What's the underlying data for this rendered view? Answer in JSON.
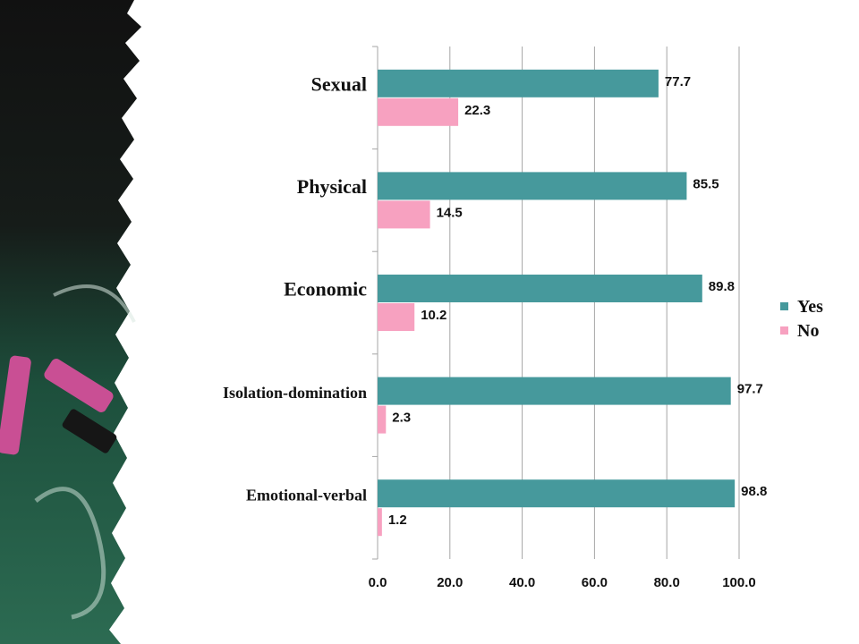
{
  "chart_data": {
    "type": "bar",
    "orientation": "horizontal",
    "categories": [
      "Sexual",
      "Physical",
      "Economic",
      "Isolation-domination",
      "Emotional-verbal"
    ],
    "series": [
      {
        "name": "Yes",
        "values": [
          77.7,
          85.5,
          89.8,
          97.7,
          98.8
        ],
        "color": "#46999C"
      },
      {
        "name": "No",
        "values": [
          22.3,
          14.5,
          10.2,
          2.3,
          1.2
        ],
        "color": "#F7A1C0"
      }
    ],
    "value_labels": {
      "Yes": [
        "77.7",
        "85.5",
        "89.8",
        "97.7",
        "98.8"
      ],
      "No": [
        "22.3",
        "14.5",
        "10.2",
        "2.3",
        "1.2"
      ]
    },
    "x_ticks": [
      "0.0",
      "20.0",
      "40.0",
      "60.0",
      "80.0",
      "100.0"
    ],
    "xlim": [
      0,
      100
    ],
    "grid": "vertical",
    "legend_position": "right",
    "title": "",
    "xlabel": "",
    "ylabel": ""
  },
  "decoration": {
    "background": "chalkboard-with-chalk",
    "board_color": "#1f5c45",
    "chalk_color": "#c94f94"
  }
}
